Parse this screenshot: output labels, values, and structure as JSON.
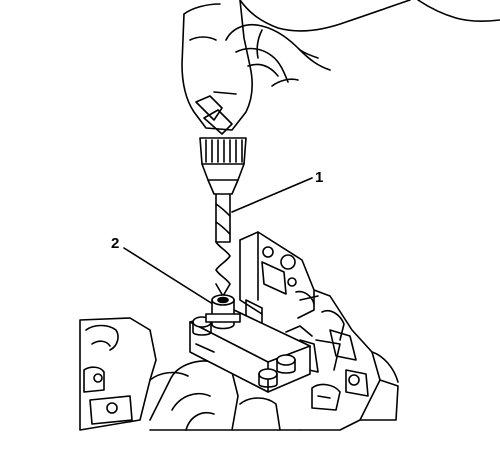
{
  "callouts": [
    {
      "id": "1",
      "label": "1",
      "refers_to": "drill-bit"
    },
    {
      "id": "2",
      "label": "2",
      "refers_to": "drill-guide-bushing"
    }
  ],
  "colors": {
    "line": "#000000",
    "background": "#ffffff",
    "hole": "#000000"
  },
  "icons": [
    "hand",
    "electric-drill",
    "drill-chuck",
    "drill-bit",
    "drill-guide-fixture",
    "engine-block"
  ]
}
